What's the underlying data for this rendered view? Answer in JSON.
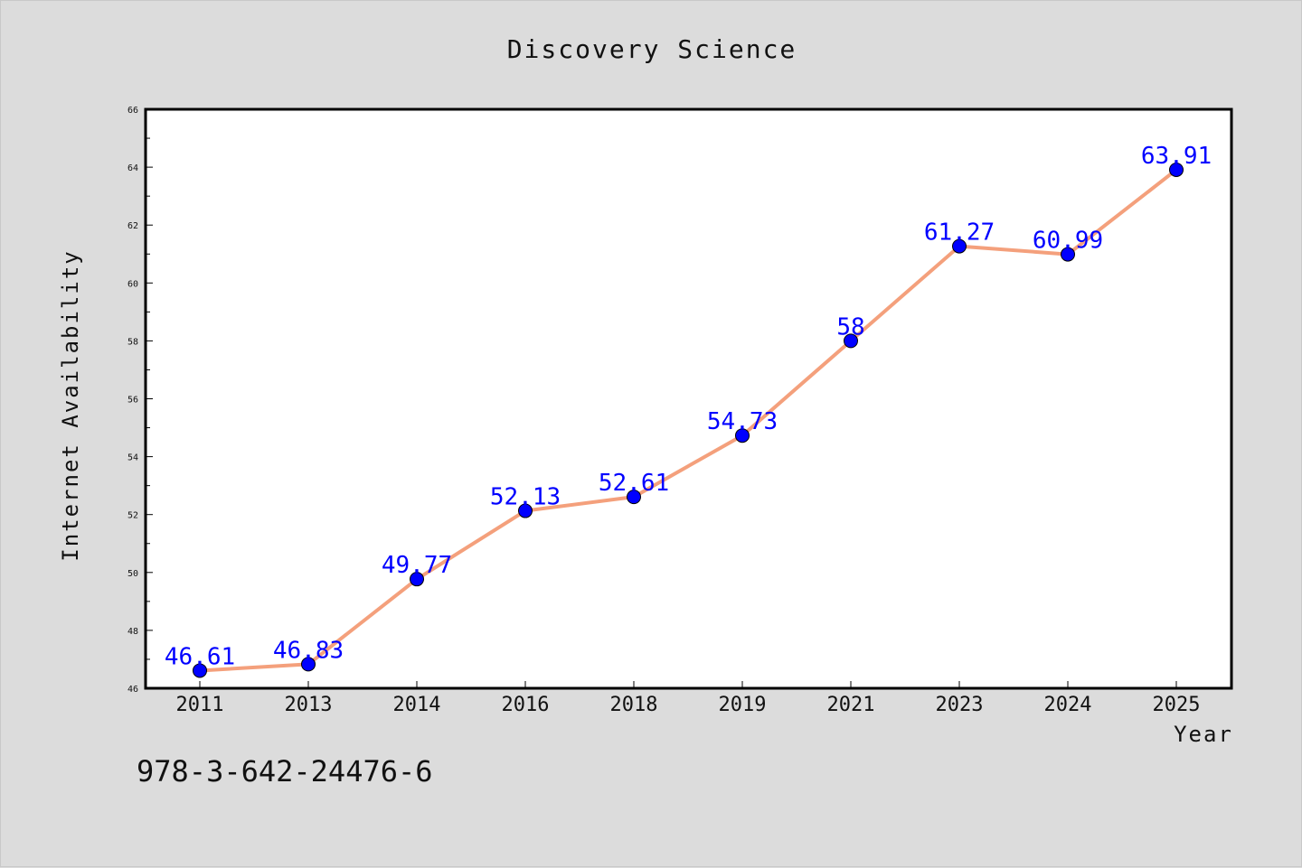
{
  "chart_data": {
    "type": "line",
    "title": "Discovery Science",
    "xlabel": "Year",
    "ylabel": "Internet Availability",
    "categories": [
      "2011",
      "2013",
      "2014",
      "2016",
      "2018",
      "2019",
      "2021",
      "2023",
      "2024",
      "2025"
    ],
    "series": [
      {
        "values": [
          46.61,
          46.83,
          49.77,
          52.13,
          52.61,
          54.73,
          58,
          61.27,
          60.99,
          63.91
        ],
        "labels": [
          "46.61",
          "46.83",
          "49.77",
          "52.13",
          "52.61",
          "54.73",
          "58",
          "61.27",
          "60.99",
          "63.91"
        ],
        "line_color": "#f4a07c",
        "marker_color": "#0000ff"
      }
    ],
    "ylim": [
      46,
      66
    ],
    "yticks": [
      "46",
      "48",
      "50",
      "52",
      "54",
      "56",
      "58",
      "60",
      "62",
      "64",
      "66"
    ],
    "grid": false,
    "legend": "none"
  },
  "footer": {
    "isbn": "978-3-642-24476-6"
  }
}
